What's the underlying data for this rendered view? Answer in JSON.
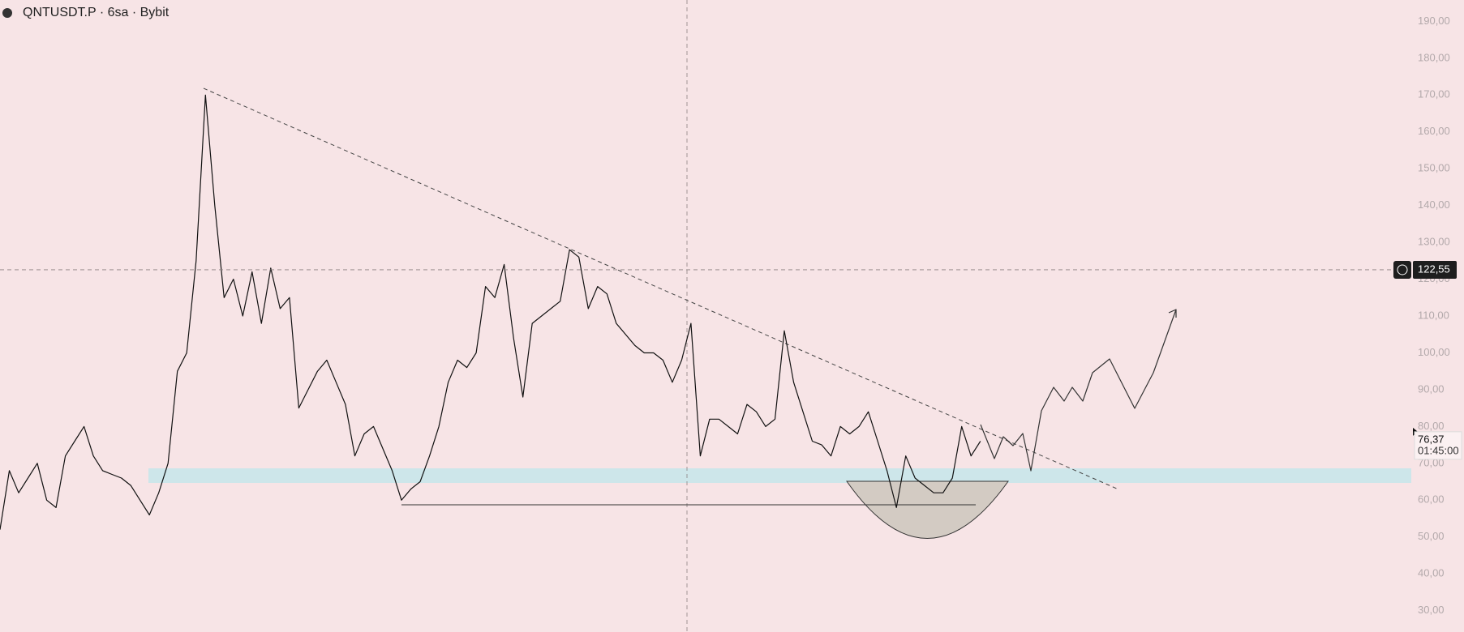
{
  "chart_data": {
    "type": "line",
    "title": "QNTUSDT.P · 6sa · Bybit",
    "series": [
      {
        "name": "QNTUSDT.P",
        "color": "#111111",
        "values": [
          52,
          68,
          62,
          66,
          70,
          60,
          58,
          72,
          76,
          80,
          72,
          68,
          67,
          66,
          64,
          60,
          56,
          62,
          70,
          95,
          100,
          125,
          170,
          140,
          115,
          120,
          110,
          122,
          108,
          123,
          112,
          115,
          85,
          90,
          95,
          98,
          92,
          86,
          72,
          78,
          80,
          74,
          68,
          60,
          63,
          65,
          72,
          80,
          92,
          98,
          96,
          100,
          118,
          115,
          124,
          104,
          88,
          108,
          110,
          112,
          114,
          128,
          126,
          112,
          118,
          116,
          108,
          105,
          102,
          100,
          100,
          98,
          92,
          98,
          108,
          72,
          82,
          82,
          80,
          78,
          86,
          84,
          80,
          82,
          106,
          92,
          84,
          76,
          75,
          72,
          80,
          78,
          80,
          84,
          76,
          68,
          58,
          72,
          66,
          64,
          62,
          62,
          66,
          80,
          72,
          76
        ]
      }
    ],
    "ylim": [
      24.2,
      195.8
    ],
    "yticks": [
      {
        "value": 30,
        "label": "30,00"
      },
      {
        "value": 40,
        "label": "40,00"
      },
      {
        "value": 50,
        "label": "50,00"
      },
      {
        "value": 60,
        "label": "60,00"
      },
      {
        "value": 70,
        "label": "70,00"
      },
      {
        "value": 80,
        "label": "80,00"
      },
      {
        "value": 90,
        "label": "90,00"
      },
      {
        "value": 100,
        "label": "100,00"
      },
      {
        "value": 110,
        "label": "110,00"
      },
      {
        "value": 120,
        "label": "120,00"
      },
      {
        "value": 130,
        "label": "130,00"
      },
      {
        "value": 140,
        "label": "140,00"
      },
      {
        "value": 150,
        "label": "150,00"
      },
      {
        "value": 160,
        "label": "160,00"
      },
      {
        "value": 170,
        "label": "170,00"
      },
      {
        "value": 180,
        "label": "180,00"
      },
      {
        "value": 190,
        "label": "190,00"
      }
    ],
    "grid": false,
    "crosshair": {
      "value": 122.55,
      "label": "122,55"
    },
    "last_price": {
      "value": 76.37,
      "label": "76,37"
    },
    "countdown": "01:45:00"
  }
}
